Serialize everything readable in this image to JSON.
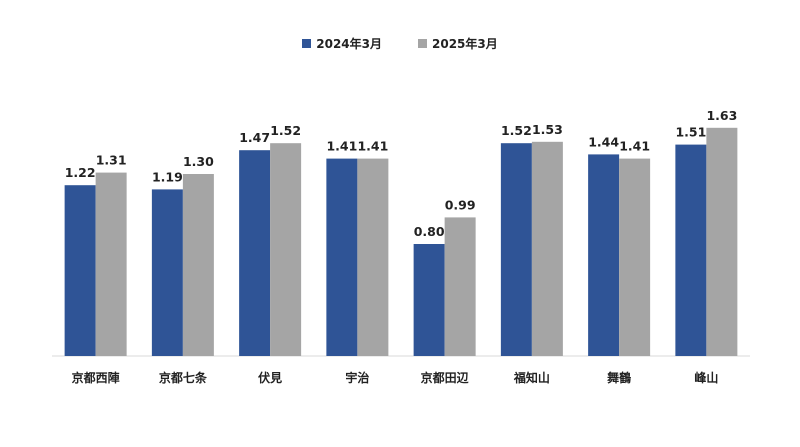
{
  "chart_data": {
    "type": "bar",
    "categories": [
      "京都西陣",
      "京都七条",
      "伏見",
      "宇治",
      "京都田辺",
      "福知山",
      "舞鶴",
      "峰山"
    ],
    "series": [
      {
        "name": "2024年3月",
        "color": "#2f5496",
        "values": [
          1.22,
          1.19,
          1.47,
          1.41,
          0.8,
          1.52,
          1.44,
          1.51
        ],
        "labels": [
          "1.22",
          "1.19",
          "1.47",
          "1.41",
          "0.80",
          "1.52",
          "1.44",
          "1.51"
        ]
      },
      {
        "name": "2025年3月",
        "color": "#a5a5a5",
        "values": [
          1.31,
          1.3,
          1.52,
          1.41,
          0.99,
          1.53,
          1.41,
          1.63
        ],
        "labels": [
          "1.31",
          "1.30",
          "1.52",
          "1.41",
          "0.99",
          "1.53",
          "1.41",
          "1.63"
        ]
      }
    ],
    "title": "",
    "xlabel": "",
    "ylabel": "",
    "ylim": [
      0,
      1.63
    ],
    "legend": "top-center",
    "grid": false
  }
}
